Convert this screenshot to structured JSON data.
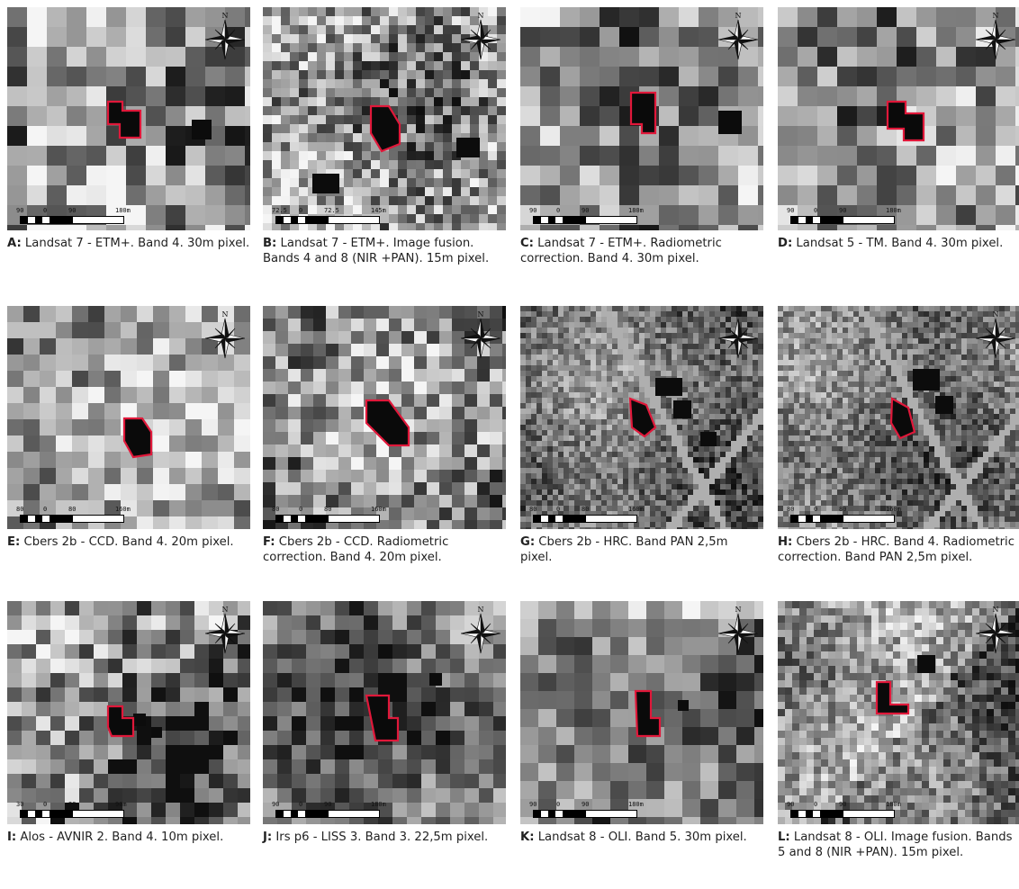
{
  "panels": [
    {
      "letter": "A:",
      "text": "Landsat 7 - ETM+. Band 4. 30m pixel.",
      "scale": [
        "90",
        "0",
        "90",
        "180m"
      ]
    },
    {
      "letter": "B:",
      "text": "Landsat 7 - ETM+. Image fusion. Bands 4 and 8 (NIR +PAN). 15m pixel.",
      "scale": [
        "72.5",
        "0",
        "72.5",
        "145m"
      ]
    },
    {
      "letter": "C:",
      "text": "Landsat 7 - ETM+. Radiometric correction. Band 4. 30m pixel.",
      "scale": [
        "90",
        "0",
        "90",
        "180m"
      ]
    },
    {
      "letter": "D:",
      "text": "Landsat 5 - TM. Band 4. 30m pixel.",
      "scale": [
        "90",
        "0",
        "90",
        "180m"
      ]
    },
    {
      "letter": "E:",
      "text": "Cbers 2b - CCD. Band 4. 20m pixel.",
      "scale": [
        "80",
        "0",
        "80",
        "160m"
      ]
    },
    {
      "letter": "F:",
      "text": "Cbers  2b - CCD. Radiometric correction. Band 4. 20m pixel.",
      "scale": [
        "80",
        "0",
        "80",
        "160m"
      ]
    },
    {
      "letter": "G:",
      "text": "Cbers 2b - HRC. Band PAN 2,5m pixel.",
      "scale": [
        "80",
        "0",
        "80",
        "160m"
      ]
    },
    {
      "letter": "H:",
      "text": "Cbers 2b - HRC. Band 4. Radiometric correction. Band PAN 2,5m pixel.",
      "scale": [
        "80",
        "0",
        "80",
        "160m"
      ]
    },
    {
      "letter": "I:",
      "text": "Alos - AVNIR 2. Band 4. 10m pixel.",
      "scale": [
        "30",
        "0",
        "30",
        "90m"
      ]
    },
    {
      "letter": "J:",
      "text": "Irs p6 - LISS 3. Band 3. 22,5m pixel.",
      "scale": [
        "90",
        "0",
        "90",
        "180m"
      ]
    },
    {
      "letter": "K:",
      "text": "Landsat 8 - OLI. Band 5. 30m pixel.",
      "scale": [
        "90",
        "0",
        "90",
        "180m"
      ]
    },
    {
      "letter": "L:",
      "text": "Landsat 8 - OLI. Image fusion. Bands 5 and 8 (NIR +PAN). 15m pixel.",
      "scale": [
        "90",
        "0",
        "90",
        "180m"
      ]
    }
  ],
  "north_label": "N",
  "outline_color": "#e0183a"
}
